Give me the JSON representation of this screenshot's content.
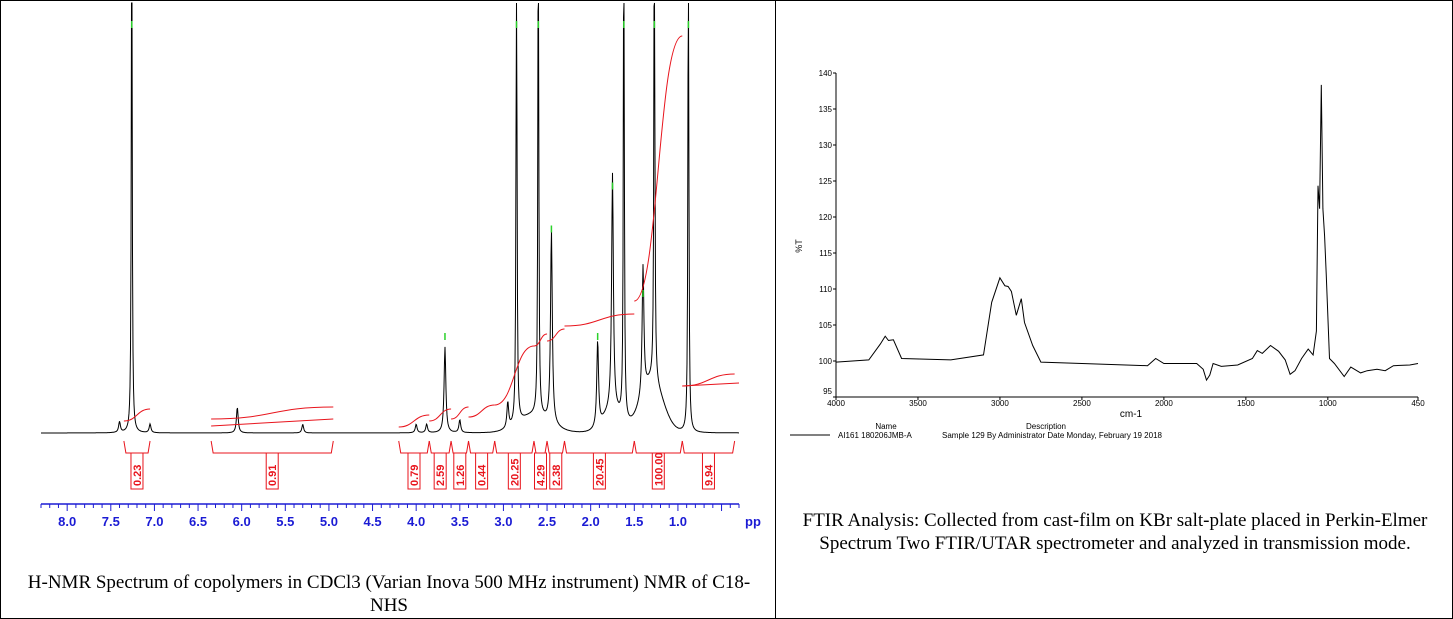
{
  "colors": {
    "spectrum": "#000000",
    "integral": "#e8141c",
    "peak_marker": "#2bd12b",
    "nmr_axis": "#1b1bd4",
    "frame": "#000000"
  },
  "nmr": {
    "caption": "H-NMR Spectrum of copolymers in CDCl3 (Varian Inova 500 MHz instrument) NMR of C18-NHS",
    "axis_unit": "pp",
    "x_ticks": [
      "8.0",
      "7.5",
      "7.0",
      "6.5",
      "6.0",
      "5.5",
      "5.0",
      "4.5",
      "4.0",
      "3.5",
      "3.0",
      "2.5",
      "2.0",
      "1.5",
      "1.0"
    ],
    "integrals": [
      {
        "value": "0.23",
        "from": 7.35,
        "to": 7.05
      },
      {
        "value": "0.91",
        "from": 6.35,
        "to": 4.95
      },
      {
        "value": "0.79",
        "from": 4.2,
        "to": 3.85
      },
      {
        "value": "2.59",
        "from": 3.85,
        "to": 3.6
      },
      {
        "value": "1.26",
        "from": 3.6,
        "to": 3.4
      },
      {
        "value": "0.44",
        "from": 3.4,
        "to": 3.1
      },
      {
        "value": "20.25",
        "from": 3.1,
        "to": 2.65
      },
      {
        "value": "4.29",
        "from": 2.65,
        "to": 2.5
      },
      {
        "value": "2.38",
        "from": 2.5,
        "to": 2.3
      },
      {
        "value": "20.45",
        "from": 2.3,
        "to": 1.5
      },
      {
        "value": "100.00",
        "from": 1.5,
        "to": 0.95
      },
      {
        "value": "9.94",
        "from": 0.95,
        "to": 0.35
      }
    ]
  },
  "chart_data": [
    {
      "type": "line",
      "title": "",
      "xlabel": "pp",
      "ylabel": "",
      "xlim": [
        8.3,
        0.3
      ],
      "reversed_x": true,
      "grid": false,
      "series": [
        {
          "peaks": [
            {
              "x": 7.26,
              "height": 1.3
            },
            {
              "x": 7.4,
              "height": 0.025
            },
            {
              "x": 7.05,
              "height": 0.02
            },
            {
              "x": 6.05,
              "height": 0.06
            },
            {
              "x": 5.3,
              "height": 0.02
            },
            {
              "x": 4.0,
              "height": 0.02
            },
            {
              "x": 3.88,
              "height": 0.02
            },
            {
              "x": 3.67,
              "height": 0.2
            },
            {
              "x": 3.5,
              "height": 0.03
            },
            {
              "x": 2.95,
              "height": 0.06
            },
            {
              "x": 2.85,
              "height": 1.3
            },
            {
              "x": 2.6,
              "height": 1.3
            },
            {
              "x": 2.45,
              "height": 0.45
            },
            {
              "x": 1.92,
              "height": 0.2
            },
            {
              "x": 1.75,
              "height": 0.55
            },
            {
              "x": 1.62,
              "height": 1.3
            },
            {
              "x": 1.4,
              "height": 0.3
            },
            {
              "x": 1.27,
              "height": 1.3
            },
            {
              "x": 0.88,
              "height": 1.3
            }
          ]
        }
      ]
    },
    {
      "type": "line",
      "title": "",
      "xlabel": "cm-1",
      "ylabel": "%T",
      "xlim": [
        4000,
        450
      ],
      "ylim": [
        95,
        140
      ],
      "x_ticks": [
        4000,
        3500,
        3000,
        2500,
        2000,
        1500,
        1000,
        450
      ],
      "y_ticks": [
        95,
        100,
        105,
        110,
        115,
        120,
        125,
        130,
        135,
        140
      ],
      "grid": false,
      "legend_header": {
        "name": "Name",
        "description": "Description"
      },
      "series": [
        {
          "name": "AI161 180206JMB-A",
          "description": "Sample 129 By Administrator Date Monday, February 19 2018",
          "x": [
            4000,
            3800,
            3730,
            3700,
            3680,
            3650,
            3600,
            3300,
            3100,
            3050,
            3000,
            2970,
            2950,
            2930,
            2900,
            2870,
            2850,
            2800,
            2750,
            2500,
            2100,
            2050,
            2000,
            1800,
            1760,
            1740,
            1720,
            1700,
            1650,
            1550,
            1460,
            1430,
            1400,
            1350,
            1300,
            1260,
            1230,
            1200,
            1160,
            1120,
            1090,
            1070,
            1060,
            1050,
            1040,
            1030,
            1020,
            1010,
            990,
            960,
            900,
            860,
            800,
            760,
            700,
            650,
            600,
            500,
            450
          ],
          "y": [
            100,
            100,
            102.5,
            103.3,
            103,
            102.8,
            100.5,
            100,
            101,
            108,
            111.7,
            110.3,
            110.5,
            109.5,
            106.5,
            108.5,
            105.5,
            102,
            100,
            99.5,
            99.5,
            100.2,
            99.8,
            99.5,
            99,
            97.2,
            98.2,
            99.5,
            99.4,
            99.3,
            100.5,
            101.3,
            101.2,
            102,
            101.5,
            100,
            98.3,
            98.5,
            100.5,
            101.5,
            101,
            104,
            124.5,
            121,
            138.5,
            121,
            117.5,
            112,
            100.5,
            99.5,
            98,
            99,
            98.5,
            98.5,
            99,
            98.5,
            99.5,
            99.3,
            99.8
          ]
        }
      ]
    }
  ],
  "ftir": {
    "caption": "FTIR Analysis: Collected from cast-film on KBr salt-plate placed in Perkin-Elmer Spectrum Two FTIR/UTAR spectrometer and analyzed in transmission mode."
  }
}
